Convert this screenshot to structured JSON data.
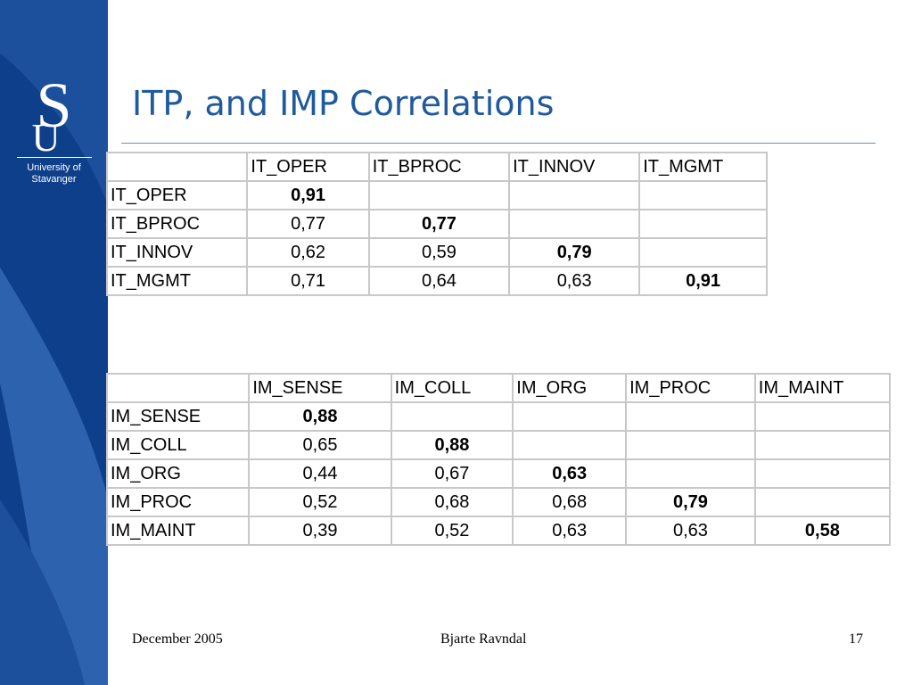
{
  "slide": {
    "title": "ITP, and IMP Correlations"
  },
  "logo": {
    "mark_top": "S",
    "mark_bottom": "U",
    "line1": "University of",
    "line2": "Stavanger"
  },
  "colors": {
    "sidebar_dark": "#0e3f8a",
    "sidebar_light": "#2d63ae",
    "title": "#1f5a9e",
    "table_border": "#c8c8c8"
  },
  "tables": {
    "it": {
      "headers": [
        "",
        "IT_OPER",
        "IT_BPROC",
        "IT_INNOV",
        "IT_MGMT"
      ],
      "rows": [
        {
          "label": "IT_OPER",
          "cells": [
            "0,91",
            "",
            "",
            ""
          ]
        },
        {
          "label": "IT_BPROC",
          "cells": [
            "0,77",
            "0,77",
            "",
            ""
          ]
        },
        {
          "label": "IT_INNOV",
          "cells": [
            "0,62",
            "0,59",
            "0,79",
            ""
          ]
        },
        {
          "label": "IT_MGMT",
          "cells": [
            "0,71",
            "0,64",
            "0,63",
            "0,91"
          ]
        }
      ]
    },
    "im": {
      "headers": [
        "",
        "IM_SENSE",
        "IM_COLL",
        "IM_ORG",
        "IM_PROC",
        "IM_MAINT"
      ],
      "rows": [
        {
          "label": "IM_SENSE",
          "cells": [
            "0,88",
            "",
            "",
            "",
            ""
          ]
        },
        {
          "label": "IM_COLL",
          "cells": [
            "0,65",
            "0,88",
            "",
            "",
            ""
          ]
        },
        {
          "label": "IM_ORG",
          "cells": [
            "0,44",
            "0,67",
            "0,63",
            "",
            ""
          ]
        },
        {
          "label": "IM_PROC",
          "cells": [
            "0,52",
            "0,68",
            "0,68",
            "0,79",
            ""
          ]
        },
        {
          "label": "IM_MAINT",
          "cells": [
            "0,39",
            "0,52",
            "0,63",
            "0,63",
            "0,58"
          ]
        }
      ]
    }
  },
  "footer": {
    "date": "December 2005",
    "author": "Bjarte Ravndal",
    "page": "17"
  }
}
